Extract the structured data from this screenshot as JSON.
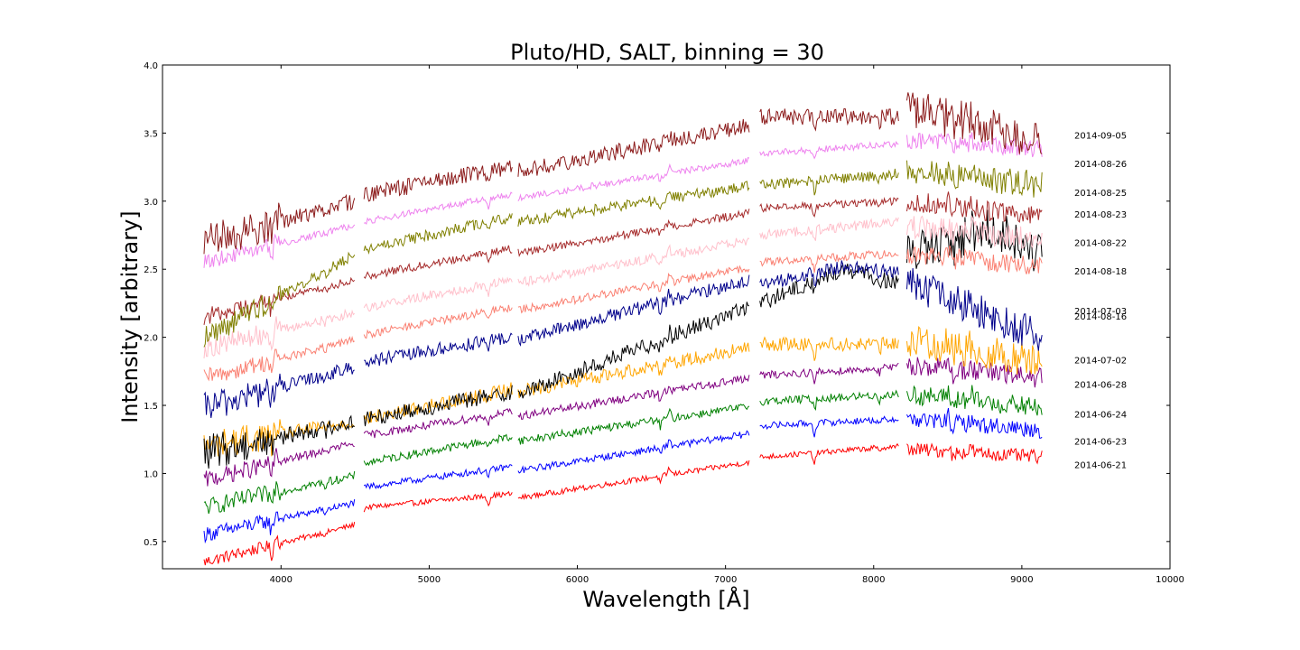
{
  "chart_data": {
    "type": "line",
    "title": "Pluto/HD, SALT, binning = 30",
    "xlabel": "Wavelength [Å]",
    "ylabel": "Intensity [arbitrary]",
    "xlim": [
      3200,
      10000
    ],
    "ylim": [
      0.3,
      4.0
    ],
    "xticks": [
      4000,
      5000,
      6000,
      7000,
      8000,
      9000,
      10000
    ],
    "yticks": [
      0.5,
      1.0,
      1.5,
      2.0,
      2.5,
      3.0,
      3.5,
      4.0
    ],
    "xtick_labels": [
      "4000",
      "5000",
      "6000",
      "7000",
      "8000",
      "9000",
      "10000"
    ],
    "ytick_labels": [
      "0.5",
      "1.0",
      "1.5",
      "2.0",
      "2.5",
      "3.0",
      "3.5",
      "4.0"
    ],
    "grid": false,
    "x_range": [
      3480,
      9140
    ],
    "gaps": [
      [
        4500,
        4560
      ],
      [
        5560,
        5600
      ],
      [
        7160,
        7230
      ],
      [
        8170,
        8220
      ]
    ],
    "series": [
      {
        "name": "2014-06-21",
        "color": "#ff0000",
        "label_y": 1.06,
        "anchors": [
          [
            3480,
            0.35
          ],
          [
            4490,
            0.62
          ],
          [
            4570,
            0.75
          ],
          [
            5550,
            0.85
          ],
          [
            5600,
            0.82
          ],
          [
            7150,
            1.08
          ],
          [
            7240,
            1.12
          ],
          [
            8160,
            1.2
          ],
          [
            8230,
            1.18
          ],
          [
            9140,
            1.12
          ]
        ],
        "noise": 0.02
      },
      {
        "name": "2014-06-23",
        "color": "#0000ff",
        "label_y": 1.23,
        "anchors": [
          [
            3480,
            0.55
          ],
          [
            4490,
            0.78
          ],
          [
            4570,
            0.9
          ],
          [
            5550,
            1.05
          ],
          [
            5600,
            1.02
          ],
          [
            7150,
            1.29
          ],
          [
            7240,
            1.35
          ],
          [
            8160,
            1.4
          ],
          [
            8230,
            1.4
          ],
          [
            9140,
            1.32
          ]
        ],
        "noise": 0.025
      },
      {
        "name": "2014-06-24",
        "color": "#008000",
        "label_y": 1.43,
        "anchors": [
          [
            3480,
            0.75
          ],
          [
            4490,
            0.98
          ],
          [
            4570,
            1.08
          ],
          [
            5550,
            1.27
          ],
          [
            5600,
            1.24
          ],
          [
            7150,
            1.49
          ],
          [
            7240,
            1.53
          ],
          [
            8160,
            1.58
          ],
          [
            8230,
            1.58
          ],
          [
            9140,
            1.48
          ]
        ],
        "noise": 0.03
      },
      {
        "name": "2014-06-28",
        "color": "#800080",
        "label_y": 1.65,
        "anchors": [
          [
            3480,
            0.95
          ],
          [
            4490,
            1.22
          ],
          [
            4570,
            1.28
          ],
          [
            5550,
            1.45
          ],
          [
            5600,
            1.42
          ],
          [
            7150,
            1.7
          ],
          [
            7240,
            1.72
          ],
          [
            8160,
            1.78
          ],
          [
            8230,
            1.8
          ],
          [
            9140,
            1.7
          ]
        ],
        "noise": 0.03
      },
      {
        "name": "2014-07-02",
        "color": "#ffa500",
        "label_y": 1.83,
        "anchors": [
          [
            3480,
            1.2
          ],
          [
            4490,
            1.38
          ],
          [
            4570,
            1.4
          ],
          [
            5550,
            1.62
          ],
          [
            5600,
            1.6
          ],
          [
            7150,
            1.92
          ],
          [
            7240,
            1.95
          ],
          [
            8160,
            1.95
          ],
          [
            8230,
            1.98
          ],
          [
            9140,
            1.82
          ]
        ],
        "noise": 0.05
      },
      {
        "name": "2014-07-03",
        "color": "#000000",
        "label_y": 2.19,
        "anchors": [
          [
            3480,
            1.15
          ],
          [
            4490,
            1.38
          ],
          [
            4570,
            1.4
          ],
          [
            5550,
            1.6
          ],
          [
            5600,
            1.58
          ],
          [
            7150,
            2.22
          ],
          [
            7240,
            2.25
          ],
          [
            7800,
            2.5
          ],
          [
            8160,
            2.4
          ],
          [
            8230,
            2.6
          ],
          [
            8800,
            2.8
          ],
          [
            9140,
            2.6
          ]
        ],
        "noise": 0.06
      },
      {
        "name": "2014-08-16",
        "color": "#00008b",
        "label_y": 2.15,
        "anchors": [
          [
            3480,
            1.48
          ],
          [
            4490,
            1.78
          ],
          [
            4570,
            1.82
          ],
          [
            5550,
            2.0
          ],
          [
            5600,
            1.98
          ],
          [
            7150,
            2.42
          ],
          [
            7240,
            2.38
          ],
          [
            7800,
            2.52
          ],
          [
            8160,
            2.48
          ],
          [
            8230,
            2.4
          ],
          [
            9140,
            2.0
          ]
        ],
        "noise": 0.05
      },
      {
        "name": "2014-08-18",
        "color": "#fa8072",
        "label_y": 2.48,
        "anchors": [
          [
            3480,
            1.7
          ],
          [
            4490,
            1.98
          ],
          [
            4570,
            2.02
          ],
          [
            5550,
            2.22
          ],
          [
            5600,
            2.2
          ],
          [
            7150,
            2.51
          ],
          [
            7240,
            2.55
          ],
          [
            8160,
            2.62
          ],
          [
            8230,
            2.62
          ],
          [
            9140,
            2.52
          ]
        ],
        "noise": 0.03
      },
      {
        "name": "2014-08-22",
        "color": "#ffc0cb",
        "label_y": 2.69,
        "anchors": [
          [
            3480,
            1.92
          ],
          [
            4490,
            2.18
          ],
          [
            4570,
            2.22
          ],
          [
            5550,
            2.42
          ],
          [
            5600,
            2.4
          ],
          [
            7150,
            2.71
          ],
          [
            7240,
            2.75
          ],
          [
            8160,
            2.85
          ],
          [
            8230,
            2.82
          ],
          [
            9140,
            2.72
          ]
        ],
        "noise": 0.035
      },
      {
        "name": "2014-08-23",
        "color": "#a52a2a",
        "label_y": 2.9,
        "anchors": [
          [
            3480,
            2.15
          ],
          [
            4490,
            2.42
          ],
          [
            4570,
            2.45
          ],
          [
            5550,
            2.65
          ],
          [
            5600,
            2.62
          ],
          [
            7150,
            2.91
          ],
          [
            7240,
            2.95
          ],
          [
            8160,
            3.0
          ],
          [
            8230,
            3.0
          ],
          [
            9140,
            2.88
          ]
        ],
        "noise": 0.03
      },
      {
        "name": "2014-08-25",
        "color": "#808000",
        "label_y": 3.06,
        "anchors": [
          [
            3480,
            2.0
          ],
          [
            4490,
            2.6
          ],
          [
            4570,
            2.65
          ],
          [
            5550,
            2.88
          ],
          [
            5600,
            2.85
          ],
          [
            7150,
            3.11
          ],
          [
            7240,
            3.12
          ],
          [
            8160,
            3.2
          ],
          [
            8230,
            3.22
          ],
          [
            9140,
            3.12
          ]
        ],
        "noise": 0.04
      },
      {
        "name": "2014-08-26",
        "color": "#ee82ee",
        "label_y": 3.27,
        "anchors": [
          [
            3480,
            2.55
          ],
          [
            4490,
            2.82
          ],
          [
            4570,
            2.85
          ],
          [
            5550,
            3.05
          ],
          [
            5600,
            3.02
          ],
          [
            7150,
            3.3
          ],
          [
            7240,
            3.35
          ],
          [
            8160,
            3.42
          ],
          [
            8230,
            3.45
          ],
          [
            9140,
            3.38
          ]
        ],
        "noise": 0.025
      },
      {
        "name": "2014-09-05",
        "color": "#8b1a1a",
        "label_y": 3.48,
        "anchors": [
          [
            3480,
            2.7
          ],
          [
            4490,
            3.0
          ],
          [
            4570,
            3.05
          ],
          [
            5550,
            3.25
          ],
          [
            5600,
            3.22
          ],
          [
            7150,
            3.55
          ],
          [
            7240,
            3.62
          ],
          [
            8160,
            3.62
          ],
          [
            8230,
            3.68
          ],
          [
            9140,
            3.45
          ]
        ],
        "noise": 0.06
      }
    ]
  }
}
